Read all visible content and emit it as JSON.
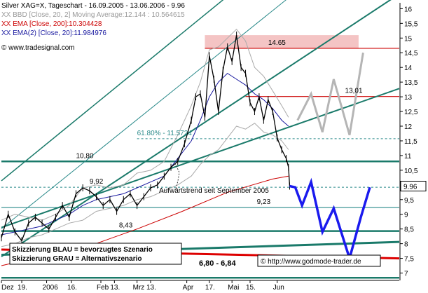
{
  "chart_data": {
    "type": "line",
    "header": {
      "line1": "Silver XAG=X, Tageschart - 16.09.2005 - 13.06.2006 - 9.96",
      "line2": "XX BBD [Close, 20, 2] Moving Average:12.144 : 10.564615",
      "line3": "XX EMA [Close, 200]:10.304428",
      "line4": "XX EMA(2) [Close, 20]:11.984976",
      "line5": "© www.tradesignal.com"
    },
    "y_ticks": [
      7,
      7.5,
      8,
      8.5,
      9,
      9.5,
      10,
      10.5,
      11,
      11.5,
      12,
      12.5,
      13,
      13.5,
      14,
      14.5,
      15,
      15.5,
      16
    ],
    "ylim": [
      6.75,
      16.2
    ],
    "x_ticks": [
      {
        "x": 0,
        "label": "Dez"
      },
      {
        "x": 9,
        "label": "19."
      },
      {
        "x": 20,
        "label": "2006"
      },
      {
        "x": 31,
        "label": "16."
      },
      {
        "x": 44,
        "label": "Feb"
      },
      {
        "x": 50,
        "label": "13."
      },
      {
        "x": 60,
        "label": "Mrz"
      },
      {
        "x": 66,
        "label": "13."
      },
      {
        "x": 82,
        "label": "Apr"
      },
      {
        "x": 92,
        "label": "17."
      },
      {
        "x": 102,
        "label": "Mai"
      },
      {
        "x": 110,
        "label": "15."
      },
      {
        "x": 122,
        "label": "Jun"
      }
    ],
    "xlim": [
      0,
      176
    ],
    "last_price": "9.96",
    "horizontal_levels": [
      {
        "value": 14.65,
        "label": "14.65",
        "color": "#cc0000",
        "style": "solid",
        "x_start": 90,
        "label_x": 118
      },
      {
        "value": 13.01,
        "label": "13,01",
        "color": "#cc0000",
        "style": "solid",
        "x_start": 108,
        "label_x": 152
      },
      {
        "value": 11.5724,
        "label": "61.80% - 11.5724",
        "color": "#2a8a8a",
        "style": "dashed",
        "x_start": 60,
        "label_x": 60
      },
      {
        "value": 10.8,
        "label": "10,80",
        "color": "#1a7a6a",
        "style": "thick",
        "x_start": 0,
        "label_x": 33
      },
      {
        "value": 9.92,
        "label": "9,92",
        "color": "#2a8a8a",
        "style": "dashed",
        "x_start": 0,
        "label_x": 39
      },
      {
        "value": 9.23,
        "label": "9,23",
        "color": "#2a8a8a",
        "style": "solid",
        "x_start": 0,
        "label_x": 113
      },
      {
        "value": 8.43,
        "label": "8,43",
        "color": "#1a7a6a",
        "style": "thick",
        "x_start": 0,
        "label_x": 52
      },
      {
        "value": 6.84,
        "label": "",
        "color": "#1a7a6a",
        "style": "thick",
        "x_start": 0,
        "label_x": 0
      }
    ],
    "resistance_band": {
      "from": 14.65,
      "to": 15.1,
      "x_start": 90,
      "x_end": 158,
      "color": "#f4c4c4"
    },
    "trend_channels": [
      {
        "x": [
          0,
          176
        ],
        "y": [
          10.14,
          21.2
        ],
        "color": "#1a7a6a",
        "width": 1.5
      },
      {
        "x": [
          0,
          176
        ],
        "y": [
          8.51,
          19.4
        ],
        "color": "#2a8a8a",
        "width": 1
      },
      {
        "x": [
          0,
          176
        ],
        "y": [
          7.56,
          16.5
        ],
        "color": "#1a7a6a",
        "width": 2
      },
      {
        "x": [
          0,
          176
        ],
        "y": [
          8.55,
          13.28
        ],
        "color": "#1a7a6a",
        "width": 2
      },
      {
        "x": [
          0,
          176
        ],
        "y": [
          7.62,
          8.06
        ],
        "color": "#1a7a6a",
        "width": 3
      }
    ],
    "ema200": {
      "x": [
        0,
        20,
        40,
        60,
        80,
        100,
        120,
        127
      ],
      "y": [
        7.25,
        7.6,
        7.95,
        8.5,
        9.1,
        9.75,
        10.2,
        10.3
      ],
      "color": "#cc0000"
    },
    "ema200_extension": {
      "x": [
        0,
        176
      ],
      "y": [
        7.8,
        7.5
      ],
      "color": "#dd0000",
      "width": 3
    },
    "bollinger_upper": {
      "x": [
        0,
        6,
        12,
        18,
        24,
        30,
        36,
        42,
        48,
        54,
        60,
        66,
        72,
        78,
        84,
        88,
        92,
        96,
        100,
        104,
        108,
        112,
        116,
        120,
        124,
        127
      ],
      "y": [
        8.8,
        9.0,
        8.9,
        8.8,
        9.0,
        9.3,
        9.9,
        10.0,
        9.9,
        10.0,
        10.4,
        10.5,
        10.8,
        11.7,
        12.7,
        13.5,
        14.6,
        14.7,
        15.0,
        15.3,
        14.9,
        14.0,
        13.7,
        13.2,
        12.7,
        12.3
      ],
      "color": "#aaaaaa"
    },
    "bollinger_lower": {
      "x": [
        0,
        6,
        12,
        18,
        24,
        30,
        36,
        42,
        48,
        54,
        60,
        66,
        72,
        78,
        84,
        88,
        92,
        96,
        100,
        104,
        108,
        112,
        116,
        120,
        124,
        127
      ],
      "y": [
        7.9,
        8.0,
        8.2,
        8.3,
        8.5,
        8.7,
        8.8,
        9.1,
        9.2,
        9.3,
        9.5,
        9.6,
        9.8,
        10.0,
        10.3,
        10.7,
        11.0,
        11.2,
        11.6,
        12.0,
        11.9,
        12.1,
        11.8,
        11.7,
        11.5,
        11.2
      ],
      "color": "#aaaaaa"
    },
    "ema20": {
      "x": [
        0,
        6,
        12,
        18,
        24,
        30,
        36,
        42,
        48,
        54,
        60,
        66,
        72,
        78,
        84,
        88,
        92,
        96,
        100,
        104,
        108,
        112,
        116,
        120,
        124,
        127
      ],
      "y": [
        8.3,
        8.4,
        8.5,
        8.6,
        8.8,
        9.0,
        9.3,
        9.5,
        9.6,
        9.7,
        9.9,
        10.1,
        10.3,
        10.9,
        11.5,
        12.2,
        13.0,
        13.5,
        13.8,
        13.6,
        13.4,
        13.1,
        12.9,
        12.6,
        12.2,
        12.0
      ],
      "color": "#1a1aa0"
    },
    "price": {
      "x": [
        0,
        3,
        6,
        9,
        12,
        15,
        18,
        21,
        24,
        27,
        30,
        33,
        36,
        39,
        42,
        45,
        48,
        51,
        54,
        57,
        60,
        63,
        66,
        69,
        72,
        75,
        78,
        81,
        84,
        86,
        88,
        90,
        92,
        94,
        96,
        98,
        100,
        102,
        104,
        106,
        108,
        110,
        112,
        114,
        116,
        118,
        120,
        122,
        124,
        126,
        127,
        127.5
      ],
      "y": [
        8.2,
        9.0,
        8.4,
        8.1,
        8.7,
        8.9,
        8.7,
        8.5,
        8.9,
        9.3,
        8.9,
        9.7,
        9.9,
        9.8,
        9.6,
        9.3,
        9.5,
        9.1,
        9.5,
        9.7,
        9.3,
        9.6,
        9.9,
        10.0,
        10.3,
        10.6,
        10.8,
        11.4,
        12.2,
        13.0,
        13.1,
        12.3,
        14.4,
        13.6,
        12.5,
        13.9,
        14.7,
        14.2,
        15.1,
        14.0,
        13.8,
        12.8,
        12.5,
        13.0,
        12.2,
        12.9,
        12.5,
        11.6,
        11.2,
        10.9,
        10.6,
        9.96
      ],
      "color": "#000000"
    },
    "scenario_blue": {
      "x": [
        127.5,
        130,
        133,
        137,
        142,
        147,
        154,
        159,
        163
      ],
      "y": [
        9.96,
        9.92,
        9.3,
        10.1,
        8.4,
        9.2,
        7.5,
        8.9,
        9.92
      ],
      "color": "#1a1aee",
      "label": "Skizzierung BLAU = bevorzugtes Szenario"
    },
    "scenario_grey": {
      "x": [
        131,
        137,
        142,
        147,
        154,
        160
      ],
      "y": [
        12.2,
        13.1,
        11.8,
        13.6,
        11.7,
        14.5
      ],
      "color": "#b5b5b5",
      "label": "Skizzierung GRAU = Alternativszenario"
    },
    "annotations": {
      "uptrend": "Aufwärtstrend seit September 2005",
      "target_range": "6,80 - 6,84",
      "source": "© http://www.godmode-trader.de"
    },
    "colors": {
      "background": "#ffffff",
      "axis": "#000000"
    }
  }
}
